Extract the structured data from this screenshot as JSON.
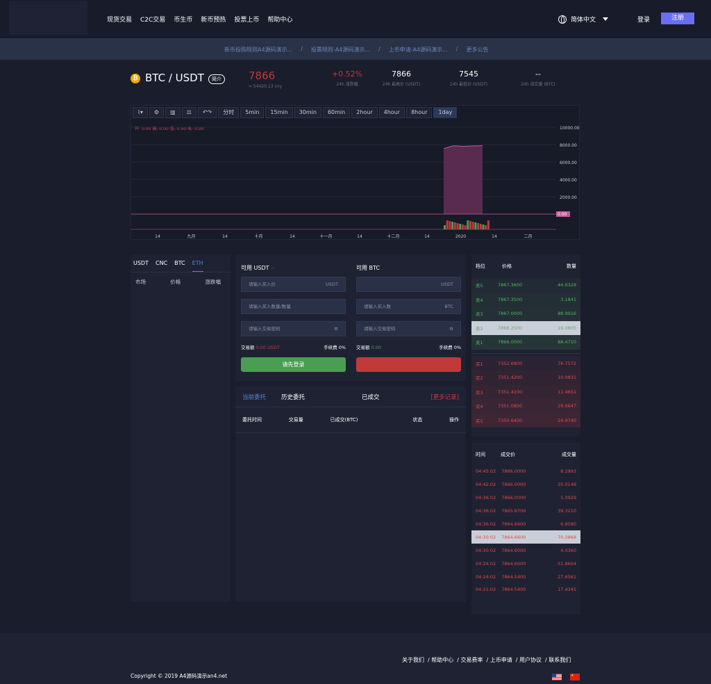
{
  "nav": {
    "items": [
      "现货交易",
      "C2C交易",
      "币生币",
      "新币预热",
      "投票上币",
      "帮助中心"
    ],
    "lang": "简体中文",
    "login": "登录",
    "register": "注册"
  },
  "notice": {
    "items": [
      "新币投购规则A4源码演示...",
      "/",
      "投票规则-A4源码演示...",
      "/",
      "上币申请-A4源码演示...",
      "/",
      "更多公告"
    ]
  },
  "ticker": {
    "pair": "BTC / USDT",
    "intro": "简介",
    "price": "7866",
    "price_sub": "≈ 54420.13 cny",
    "change": "+0.52%",
    "change_label": "24h 涨跌幅",
    "high": "7866",
    "high_label": "24h 最高价 (USDT)",
    "low": "7545",
    "low_label": "24h 最低价 (USDT)",
    "vol": "--",
    "vol_label": "24h 成交量 (BTC)"
  },
  "chart_toolbar": [
    "分时",
    "5min",
    "15min",
    "30min",
    "60min",
    "2hour",
    "4hour",
    "8hour",
    "1day"
  ],
  "chart_data": {
    "type": "area",
    "ohlc_labels": [
      "开- 0.00",
      "高- 0.00",
      "低- 0.00",
      "收- 0.00"
    ],
    "y_ticks": [
      "10000.00",
      "8000.00",
      "6000.00",
      "4000.00",
      "2000.00",
      "0.00"
    ],
    "x_ticks": [
      "14",
      "九月",
      "14",
      "十月",
      "14",
      "十一月",
      "14",
      "十二月",
      "14",
      "2020",
      "14",
      "二月"
    ],
    "ylim": [
      0,
      10000
    ],
    "series": [
      {
        "values": [
          0,
          0,
          0,
          0,
          0,
          0,
          0,
          0,
          0,
          0,
          7545,
          7866,
          7800,
          7850,
          7866,
          0,
          0,
          0
        ]
      }
    ]
  },
  "market": {
    "tabs": [
      "USDT",
      "CNC",
      "BTC",
      "ETH"
    ],
    "active": "ETH",
    "headers": [
      "市场",
      "价格",
      "涨跌幅"
    ]
  },
  "trade": {
    "buy_avail": "可用 USDT",
    "buy_avail_val": "--",
    "sell_avail": "可用 BTC",
    "buy_price_ph": "请输入买入价",
    "buy_price_unit": "USDT",
    "buy_qty_ph": "请输入买入数量/数量",
    "pwd_ph": "请输入交易密码",
    "sell_price_unit": "USDT",
    "sell_qty_ph": "请输入买入数",
    "sell_qty_unit": "BTC",
    "sell_pwd_ph": "请输入交易密码",
    "buy_amount_label": "交易额",
    "buy_amount": "0.00 USDT",
    "fee_label": "手续费",
    "fee": "0%",
    "sell_amount_label": "交易额",
    "sell_amount": "0.00",
    "buy_btn": "请先登录",
    "sell_btn": ""
  },
  "orders": {
    "tabs": [
      "当前委托",
      "历史委托",
      "已成交"
    ],
    "more": "[更多记录]",
    "headers": [
      "委托时间",
      "交易量",
      "已成交(BTC)",
      "状态",
      "操作"
    ]
  },
  "book": {
    "headers": [
      "档位",
      "价格",
      "数量"
    ],
    "asks": [
      [
        "卖5",
        "7867.3600",
        "44.6328"
      ],
      [
        "卖4",
        "7867.3500",
        "3.1841"
      ],
      [
        "卖3",
        "7867.0000",
        "88.9916"
      ],
      [
        "卖2",
        "7866.2500",
        "16.0805"
      ],
      [
        "卖1",
        "7866.0000",
        "88.4710"
      ]
    ],
    "bids": [
      [
        "买1",
        "7352.6800",
        "76.7572"
      ],
      [
        "买2",
        "7351.4200",
        "10.0831"
      ],
      [
        "买3",
        "7351.4100",
        "11.4651"
      ],
      [
        "买4",
        "7351.0800",
        "29.6647"
      ],
      [
        "买5",
        "7350.6400",
        "24.9740"
      ]
    ]
  },
  "deals": {
    "headers": [
      "时间",
      "成交价",
      "成交量"
    ],
    "rows": [
      [
        "04:45:02",
        "7866.0000",
        "8.2993"
      ],
      [
        "04:42:02",
        "7866.0000",
        "35.0148"
      ],
      [
        "04:36:02",
        "7866.0000",
        "5.0929"
      ],
      [
        "04:36:02",
        "7865.8700",
        "39.3210"
      ],
      [
        "04:36:02",
        "7864.6600",
        "6.8580"
      ],
      [
        "04:30:02",
        "7864.6600",
        "70.3868"
      ],
      [
        "04:30:02",
        "7864.6000",
        "4.0360"
      ],
      [
        "04:24:02",
        "7864.6000",
        "51.8604"
      ],
      [
        "04:24:02",
        "7864.5400",
        "27.6561"
      ],
      [
        "04:21:02",
        "7864.5400",
        "17.4345"
      ]
    ]
  },
  "footer": {
    "links": [
      "关于我们",
      "/ 帮助中心",
      "/ 交易费率",
      "/ 上币申请",
      "/ 用户协议",
      "/ 联系我们"
    ],
    "copyright": "Copyright © 2019 A4源码演示an4.net"
  },
  "colors": {
    "accent": "#6a6ef0",
    "up": "#4a9e52",
    "down": "#c0393b"
  }
}
